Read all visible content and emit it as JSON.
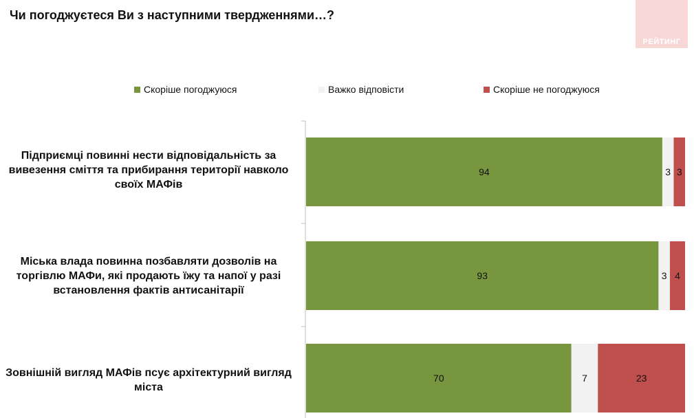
{
  "title": "Чи погоджуєтеся Ви з наступними твердженнями…?",
  "brand": "РЕЙТИНГ",
  "colors": {
    "agree": "#78963d",
    "hard": "#f2f2f2",
    "disagree": "#c0504d",
    "axis": "#bfbfbf"
  },
  "chart_data": {
    "type": "bar",
    "orientation": "horizontal",
    "stacked": true,
    "xlim": [
      0,
      100
    ],
    "legend_position": "top",
    "grid": false,
    "categories": [
      "Підприємці повинні нести відповідальність за вивезення сміття та прибирання території навколо своїх МАФів",
      "Міська влада повинна позбавляти дозволів на торгівлю МАФи, які продають їжу та напої у разі встановлення фактів антисанітарії",
      "Зовнішній вигляд МАФів псує архітектурний вигляд міста"
    ],
    "series": [
      {
        "name": "Скоріше погоджуюся",
        "values": [
          94,
          93,
          70
        ],
        "color": "#78963d"
      },
      {
        "name": "Важко відповісти",
        "values": [
          3,
          3,
          7
        ],
        "color": "#f2f2f2"
      },
      {
        "name": "Скоріше не погоджуюся",
        "values": [
          3,
          4,
          23
        ],
        "color": "#c0504d"
      }
    ]
  }
}
